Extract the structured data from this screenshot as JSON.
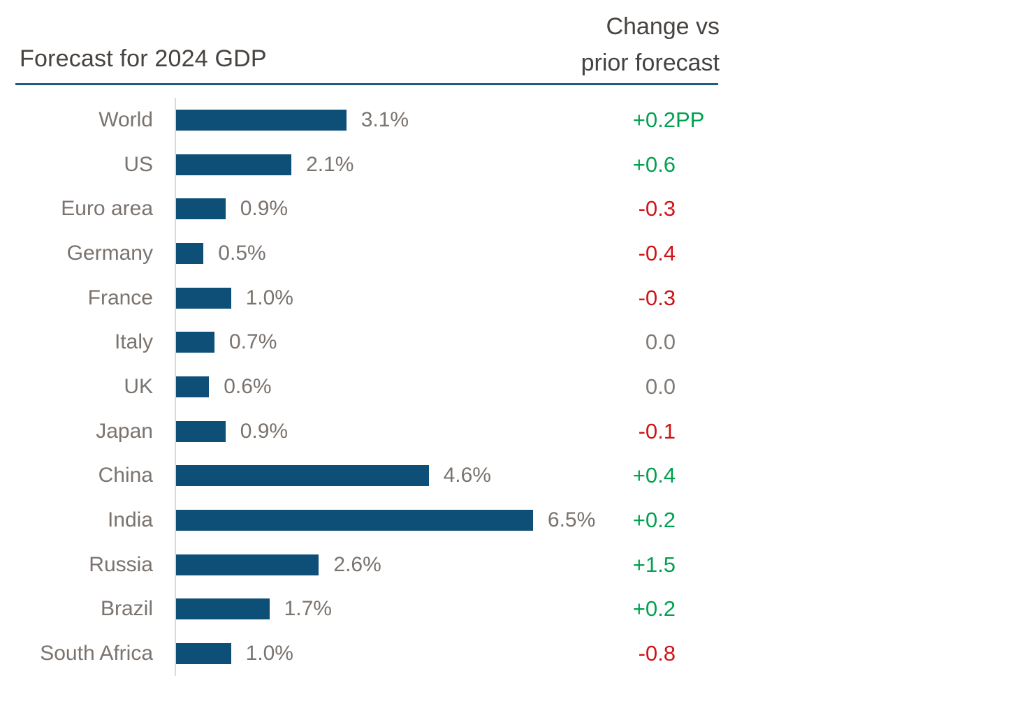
{
  "header": {
    "title": "Forecast for 2024 GDP",
    "change_col_line1": "Change vs",
    "change_col_line2": "prior forecast"
  },
  "chart_data": {
    "type": "bar",
    "orientation": "horizontal",
    "title": "Forecast for 2024 GDP",
    "change_column_header": "Change vs prior forecast",
    "categories": [
      "World",
      "US",
      "Euro area",
      "Germany",
      "France",
      "Italy",
      "UK",
      "Japan",
      "China",
      "India",
      "Russia",
      "Brazil",
      "South Africa"
    ],
    "values": [
      3.1,
      2.1,
      0.9,
      0.5,
      1.0,
      0.7,
      0.6,
      0.9,
      4.6,
      6.5,
      2.6,
      1.7,
      1.0
    ],
    "value_labels": [
      "3.1%",
      "2.1%",
      "0.9%",
      "0.5%",
      "1.0%",
      "0.7%",
      "0.6%",
      "0.9%",
      "4.6%",
      "6.5%",
      "2.6%",
      "1.7%",
      "1.0%"
    ],
    "changes": [
      {
        "label": "+0.2",
        "suffix": "PP",
        "direction": "up"
      },
      {
        "label": "+0.6",
        "suffix": "",
        "direction": "up"
      },
      {
        "label": "-0.3",
        "suffix": "",
        "direction": "down"
      },
      {
        "label": "-0.4",
        "suffix": "",
        "direction": "down"
      },
      {
        "label": "-0.3",
        "suffix": "",
        "direction": "down"
      },
      {
        "label": "0.0",
        "suffix": "",
        "direction": "zero"
      },
      {
        "label": "0.0",
        "suffix": "",
        "direction": "zero"
      },
      {
        "label": "-0.1",
        "suffix": "",
        "direction": "down"
      },
      {
        "label": "+0.4",
        "suffix": "",
        "direction": "up"
      },
      {
        "label": "+0.2",
        "suffix": "",
        "direction": "up"
      },
      {
        "label": "+1.5",
        "suffix": "",
        "direction": "up"
      },
      {
        "label": "+0.2",
        "suffix": "",
        "direction": "up"
      },
      {
        "label": "-0.8",
        "suffix": "",
        "direction": "down"
      }
    ],
    "xlim": [
      0,
      6.5
    ],
    "grid": false,
    "legend": false,
    "colors": {
      "bar": "#0e4f77",
      "positive": "#00a14f",
      "negative": "#d01317",
      "zero": "#7f7a75",
      "rule": "#1f5c7e",
      "axis_line": "#dcdad8",
      "label_text": "#7a736e",
      "title_text": "#474340"
    }
  }
}
